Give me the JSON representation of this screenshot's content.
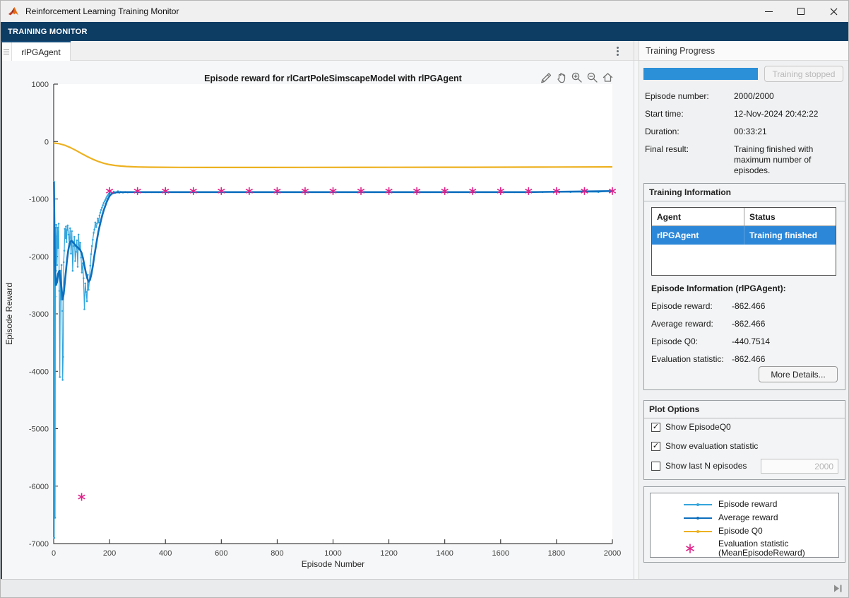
{
  "window": {
    "title": "Reinforcement Learning Training Monitor"
  },
  "ribbon": {
    "label": "TRAINING MONITOR"
  },
  "doc_tab": {
    "label": "rlPGAgent"
  },
  "icons": {
    "check": "✓"
  },
  "panel": {
    "title": "Training Progress",
    "progress": {
      "percent": 100,
      "stop_label": "Training stopped"
    },
    "summary": [
      {
        "label": "Episode number:",
        "value": "2000/2000"
      },
      {
        "label": "Start time:",
        "value": "12-Nov-2024 20:42:22"
      },
      {
        "label": "Duration:",
        "value": "00:33:21"
      },
      {
        "label": "Final result:",
        "value": "Training finished with maximum number of episodes."
      }
    ],
    "training_information": {
      "title": "Training Information",
      "table_headers": [
        "Agent",
        "Status"
      ],
      "table_row": {
        "agent": "rlPGAgent",
        "status": "Training finished"
      },
      "episode_info_title": "Episode Information (rlPGAgent):",
      "episode_rows": [
        {
          "label": "Episode reward:",
          "value": "-862.466"
        },
        {
          "label": "Average reward:",
          "value": "-862.466"
        },
        {
          "label": "Episode Q0:",
          "value": "-440.7514"
        },
        {
          "label": "Evaluation statistic:",
          "value": "-862.466"
        }
      ],
      "more_details_label": "More Details..."
    },
    "plot_options": {
      "title": "Plot Options",
      "items": [
        {
          "label": "Show EpisodeQ0",
          "checked": true
        },
        {
          "label": "Show evaluation statistic",
          "checked": true
        },
        {
          "label": "Show last N episodes",
          "checked": false
        }
      ],
      "n_episodes_value": "2000"
    },
    "legend": {
      "entries": [
        {
          "label": "Episode reward",
          "label2": "",
          "color": "#34a5dc",
          "marker": "line-dot"
        },
        {
          "label": "Average reward",
          "label2": "",
          "color": "#0d6fbe",
          "marker": "line-dot"
        },
        {
          "label": "Episode Q0",
          "label2": "",
          "color": "#edb120",
          "marker": "line-dot"
        },
        {
          "label": "Evaluation statistic",
          "label2": "(MeanEpisodeReward)",
          "color": "#e0218a",
          "marker": "asterisk"
        }
      ]
    }
  },
  "chart_data": {
    "type": "line",
    "title": "Episode reward for rlCartPoleSimscapeModel with rlPGAgent",
    "xlabel": "Episode Number",
    "ylabel": "Episode Reward",
    "xlim": [
      0,
      2000
    ],
    "ylim": [
      -7000,
      1000
    ],
    "xticks": [
      0,
      200,
      400,
      600,
      800,
      1000,
      1200,
      1400,
      1600,
      1800,
      2000
    ],
    "yticks": [
      1000,
      0,
      -1000,
      -2000,
      -3000,
      -4000,
      -5000,
      -6000,
      -7000
    ],
    "grid": false,
    "legend_position": "separate-panel",
    "series": [
      {
        "name": "Episode reward",
        "color": "#34a5dc",
        "width": 1.2,
        "marker": "dot",
        "points": [
          [
            1,
            -700
          ],
          [
            2,
            -6900
          ],
          [
            3,
            -3400
          ],
          [
            4,
            -1900
          ],
          [
            5,
            -6550
          ],
          [
            6,
            -2700
          ],
          [
            7,
            -1500
          ],
          [
            8,
            -2250
          ],
          [
            9,
            -1450
          ],
          [
            10,
            -1650
          ],
          [
            12,
            -2150
          ],
          [
            14,
            -1500
          ],
          [
            16,
            -1850
          ],
          [
            18,
            -1430
          ],
          [
            20,
            -2600
          ],
          [
            22,
            -4100
          ],
          [
            24,
            -2250
          ],
          [
            26,
            -2750
          ],
          [
            28,
            -2150
          ],
          [
            30,
            -2950
          ],
          [
            32,
            -4150
          ],
          [
            34,
            -3750
          ],
          [
            36,
            -2100
          ],
          [
            38,
            -1900
          ],
          [
            40,
            -1520
          ],
          [
            42,
            -1680
          ],
          [
            44,
            -1480
          ],
          [
            46,
            -1750
          ],
          [
            48,
            -1540
          ],
          [
            50,
            -1460
          ],
          [
            53,
            -1620
          ],
          [
            56,
            -1780
          ],
          [
            59,
            -1510
          ],
          [
            62,
            -1950
          ],
          [
            65,
            -1560
          ],
          [
            68,
            -2250
          ],
          [
            71,
            -1820
          ],
          [
            74,
            -1660
          ],
          [
            77,
            -2080
          ],
          [
            80,
            -1920
          ],
          [
            83,
            -1720
          ],
          [
            86,
            -2180
          ],
          [
            89,
            -1620
          ],
          [
            92,
            -1880
          ],
          [
            95,
            -1760
          ],
          [
            98,
            -2020
          ],
          [
            101,
            -2280
          ],
          [
            104,
            -2120
          ],
          [
            107,
            -2380
          ],
          [
            110,
            -2920
          ],
          [
            113,
            -2470
          ],
          [
            116,
            -2620
          ],
          [
            119,
            -2780
          ],
          [
            122,
            -2320
          ],
          [
            125,
            -2580
          ],
          [
            128,
            -2420
          ],
          [
            131,
            -2160
          ],
          [
            134,
            -1960
          ],
          [
            137,
            -1820
          ],
          [
            140,
            -1710
          ],
          [
            143,
            -1590
          ],
          [
            146,
            -1530
          ],
          [
            149,
            -1410
          ],
          [
            152,
            -1490
          ],
          [
            155,
            -1430
          ],
          [
            158,
            -1340
          ],
          [
            161,
            -1410
          ],
          [
            164,
            -1290
          ],
          [
            167,
            -1240
          ],
          [
            170,
            -1190
          ],
          [
            173,
            -1150
          ],
          [
            176,
            -1110
          ],
          [
            179,
            -1070
          ],
          [
            182,
            -1040
          ],
          [
            185,
            -1015
          ],
          [
            188,
            -985
          ],
          [
            191,
            -955
          ],
          [
            194,
            -935
          ],
          [
            197,
            -910
          ],
          [
            200,
            -895
          ],
          [
            205,
            -878
          ],
          [
            210,
            -902
          ],
          [
            215,
            -872
          ],
          [
            220,
            -893
          ],
          [
            225,
            -882
          ],
          [
            230,
            -864
          ],
          [
            235,
            -890
          ],
          [
            240,
            -876
          ],
          [
            248,
            -888
          ],
          [
            256,
            -878
          ],
          [
            265,
            -884
          ],
          [
            275,
            -879
          ],
          [
            290,
            -883
          ],
          [
            310,
            -880
          ],
          [
            330,
            -882
          ],
          [
            350,
            -880
          ],
          [
            375,
            -881
          ],
          [
            400,
            -880
          ],
          [
            450,
            -880
          ],
          [
            500,
            -881
          ],
          [
            560,
            -880
          ],
          [
            630,
            -880
          ],
          [
            700,
            -881
          ],
          [
            780,
            -880
          ],
          [
            860,
            -880
          ],
          [
            950,
            -881
          ],
          [
            1050,
            -880
          ],
          [
            1150,
            -880
          ],
          [
            1250,
            -881
          ],
          [
            1350,
            -880
          ],
          [
            1450,
            -880
          ],
          [
            1550,
            -881
          ],
          [
            1650,
            -880
          ],
          [
            1750,
            -880
          ],
          [
            1850,
            -881
          ],
          [
            1950,
            -880
          ],
          [
            2000,
            -862
          ]
        ]
      },
      {
        "name": "Average reward",
        "color": "#0d6fbe",
        "width": 2.6,
        "marker": "none",
        "points": [
          [
            1,
            -700
          ],
          [
            4,
            -2100
          ],
          [
            8,
            -2500
          ],
          [
            12,
            -2450
          ],
          [
            16,
            -2300
          ],
          [
            20,
            -2250
          ],
          [
            24,
            -2400
          ],
          [
            28,
            -2550
          ],
          [
            32,
            -2750
          ],
          [
            36,
            -2650
          ],
          [
            40,
            -2450
          ],
          [
            44,
            -2250
          ],
          [
            48,
            -2050
          ],
          [
            52,
            -1900
          ],
          [
            56,
            -1800
          ],
          [
            60,
            -1740
          ],
          [
            65,
            -1730
          ],
          [
            70,
            -1760
          ],
          [
            75,
            -1790
          ],
          [
            80,
            -1820
          ],
          [
            85,
            -1840
          ],
          [
            90,
            -1860
          ],
          [
            95,
            -1890
          ],
          [
            100,
            -1940
          ],
          [
            105,
            -2030
          ],
          [
            110,
            -2160
          ],
          [
            115,
            -2280
          ],
          [
            120,
            -2380
          ],
          [
            125,
            -2440
          ],
          [
            130,
            -2410
          ],
          [
            135,
            -2310
          ],
          [
            140,
            -2170
          ],
          [
            145,
            -2010
          ],
          [
            150,
            -1860
          ],
          [
            155,
            -1710
          ],
          [
            160,
            -1570
          ],
          [
            165,
            -1460
          ],
          [
            170,
            -1360
          ],
          [
            175,
            -1265
          ],
          [
            180,
            -1185
          ],
          [
            185,
            -1115
          ],
          [
            190,
            -1050
          ],
          [
            195,
            -995
          ],
          [
            200,
            -948
          ],
          [
            207,
            -912
          ],
          [
            214,
            -895
          ],
          [
            222,
            -886
          ],
          [
            232,
            -882
          ],
          [
            245,
            -880
          ],
          [
            260,
            -880
          ],
          [
            300,
            -880
          ],
          [
            400,
            -880
          ],
          [
            600,
            -880
          ],
          [
            900,
            -880
          ],
          [
            1300,
            -880
          ],
          [
            1700,
            -880
          ],
          [
            2000,
            -862
          ]
        ]
      },
      {
        "name": "Episode Q0",
        "color": "#edb120",
        "width": 2.2,
        "marker": "none",
        "points": [
          [
            0,
            -25
          ],
          [
            20,
            -38
          ],
          [
            40,
            -65
          ],
          [
            60,
            -105
          ],
          [
            80,
            -155
          ],
          [
            100,
            -210
          ],
          [
            120,
            -262
          ],
          [
            140,
            -308
          ],
          [
            160,
            -348
          ],
          [
            180,
            -380
          ],
          [
            200,
            -402
          ],
          [
            220,
            -417
          ],
          [
            240,
            -427
          ],
          [
            260,
            -434
          ],
          [
            280,
            -439
          ],
          [
            300,
            -443
          ],
          [
            340,
            -446
          ],
          [
            380,
            -448
          ],
          [
            450,
            -450
          ],
          [
            550,
            -451
          ],
          [
            700,
            -451
          ],
          [
            900,
            -450
          ],
          [
            1200,
            -449
          ],
          [
            1500,
            -447
          ],
          [
            1800,
            -444
          ],
          [
            2000,
            -441
          ]
        ]
      },
      {
        "name": "Evaluation statistic (MeanEpisodeReward)",
        "color": "#e0218a",
        "width": 1.6,
        "marker": "asterisk",
        "points": [
          [
            100,
            -6188
          ],
          [
            200,
            -862.466
          ],
          [
            300,
            -862.466
          ],
          [
            400,
            -862.466
          ],
          [
            500,
            -862.466
          ],
          [
            600,
            -862.466
          ],
          [
            700,
            -862.466
          ],
          [
            800,
            -862.466
          ],
          [
            900,
            -862.466
          ],
          [
            1000,
            -862.466
          ],
          [
            1100,
            -862.466
          ],
          [
            1200,
            -862.466
          ],
          [
            1300,
            -862.466
          ],
          [
            1400,
            -862.466
          ],
          [
            1500,
            -862.466
          ],
          [
            1600,
            -862.466
          ],
          [
            1700,
            -862.466
          ],
          [
            1800,
            -862.466
          ],
          [
            1900,
            -862.466
          ],
          [
            2000,
            -862.466
          ]
        ]
      }
    ]
  }
}
